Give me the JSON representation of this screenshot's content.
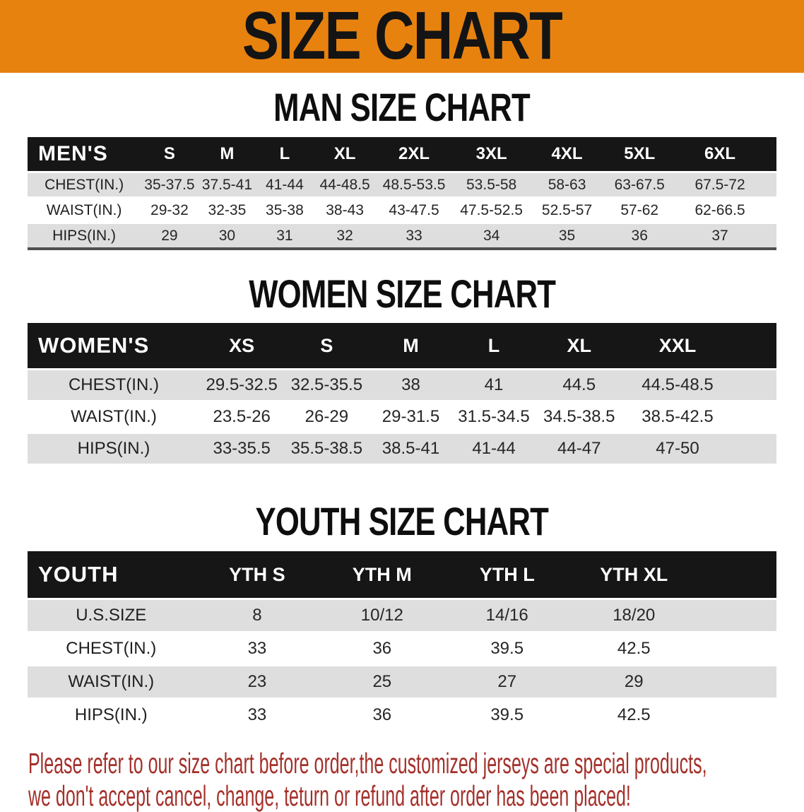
{
  "banner": {
    "title": "SIZE CHART",
    "bg_color": "#E8820F",
    "text_color": "#141414"
  },
  "sections": [
    {
      "heading": "MAN SIZE CHART",
      "table": {
        "corner_label": "MEN'S",
        "columns": [
          "S",
          "M",
          "L",
          "XL",
          "2XL",
          "3XL",
          "4XL",
          "5XL",
          "6XL"
        ],
        "rows": [
          {
            "label": "CHEST(IN.)",
            "values": [
              "35-37.5",
              "37.5-41",
              "41-44",
              "44-48.5",
              "48.5-53.5",
              "53.5-58",
              "58-63",
              "63-67.5",
              "67.5-72"
            ]
          },
          {
            "label": "WAIST(IN.)",
            "values": [
              "29-32",
              "32-35",
              "35-38",
              "38-43",
              "43-47.5",
              "47.5-52.5",
              "52.5-57",
              "57-62",
              "62-66.5"
            ]
          },
          {
            "label": "HIPS(IN.)",
            "values": [
              "29",
              "30",
              "31",
              "32",
              "33",
              "34",
              "35",
              "36",
              "37"
            ]
          }
        ]
      }
    },
    {
      "heading": "WOMEN SIZE CHART",
      "table": {
        "corner_label": "WOMEN'S",
        "columns": [
          "XS",
          "S",
          "M",
          "L",
          "XL",
          "XXL"
        ],
        "rows": [
          {
            "label": "CHEST(IN.)",
            "values": [
              "29.5-32.5",
              "32.5-35.5",
              "38",
              "41",
              "44.5",
              "44.5-48.5"
            ]
          },
          {
            "label": "WAIST(IN.)",
            "values": [
              "23.5-26",
              "26-29",
              "29-31.5",
              "31.5-34.5",
              "34.5-38.5",
              "38.5-42.5"
            ]
          },
          {
            "label": "HIPS(IN.)",
            "values": [
              "33-35.5",
              "35.5-38.5",
              "38.5-41",
              "41-44",
              "44-47",
              "47-50"
            ]
          }
        ]
      }
    },
    {
      "heading": "YOUTH SIZE CHART",
      "table": {
        "corner_label": "YOUTH",
        "columns": [
          "YTH S",
          "YTH M",
          "YTH L",
          "YTH XL"
        ],
        "rows": [
          {
            "label": "U.S.SIZE",
            "values": [
              "8",
              "10/12",
              "14/16",
              "18/20"
            ]
          },
          {
            "label": "CHEST(IN.)",
            "values": [
              "33",
              "36",
              "39.5",
              "42.5"
            ]
          },
          {
            "label": "WAIST(IN.)",
            "values": [
              "23",
              "25",
              "27",
              "29"
            ]
          },
          {
            "label": "HIPS(IN.)",
            "values": [
              "33",
              "36",
              "39.5",
              "42.5"
            ]
          }
        ]
      }
    }
  ],
  "footer": {
    "line1": "Please refer to our size chart before order,the customized jerseys are special products,",
    "line2": "we don't accept cancel, change, teturn or refund after order has been placed!",
    "text_color": "#A4302A"
  },
  "colors": {
    "banner_orange": "#E8820F",
    "header_black": "#161616",
    "row_gray": "#DEDEDE",
    "row_white": "#FFFFFF",
    "disclaimer_red": "#A4302A"
  }
}
